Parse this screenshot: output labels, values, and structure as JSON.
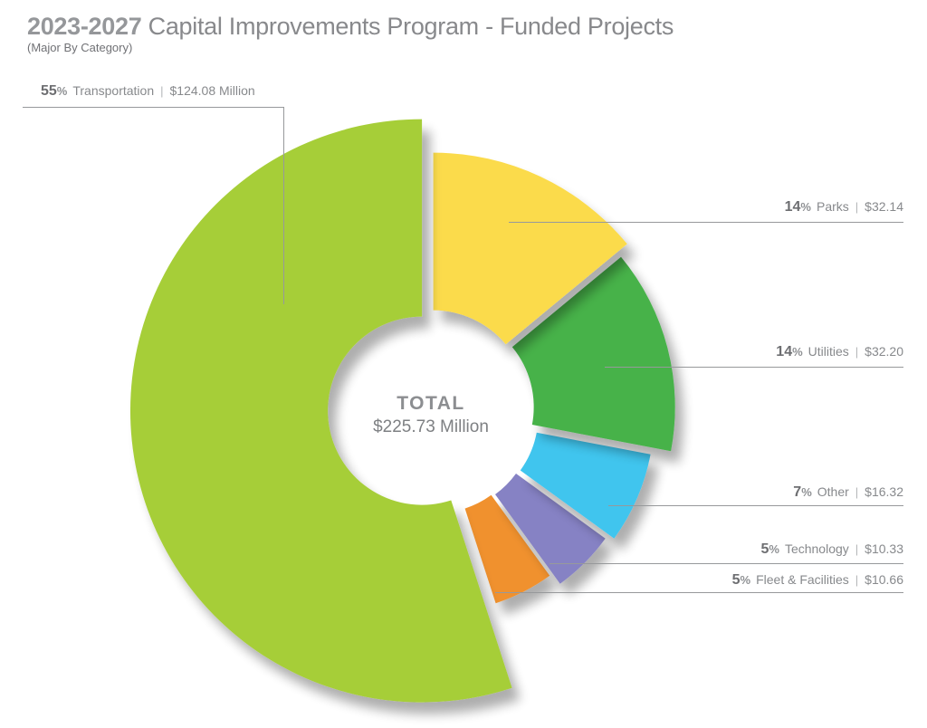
{
  "title": {
    "year_range": "2023-2027",
    "text": "Capital Improvements Program - Funded Projects",
    "subtitle": "(Major By Category)"
  },
  "labels": {
    "separator": "|"
  },
  "palette": {
    "text_gray": "#87898C",
    "percent_gray": "#6D6E71",
    "leader_line_gray": "#97999B",
    "title_gray": "#88898C",
    "background": "#FFFFFF"
  },
  "chart_data": {
    "type": "pie",
    "subtype": "donut-exploded",
    "title": "2023-2027 Capital Improvements Program - Funded Projects",
    "subtitle": "(Major By Category)",
    "start_angle_deg": 0,
    "direction": "clockwise",
    "center": {
      "label": "TOTAL",
      "value": "$225.73 Million"
    },
    "total_millions": 225.73,
    "slices": [
      {
        "label": "Parks",
        "percent": 14,
        "value_text": "$32.14",
        "value_millions": 32.14,
        "color": "#FBDB4B"
      },
      {
        "label": "Utilities",
        "percent": 14,
        "value_text": "$32.20",
        "value_millions": 32.2,
        "color": "#46B24A"
      },
      {
        "label": "Other",
        "percent": 7,
        "value_text": "$16.32",
        "value_millions": 16.32,
        "color": "#3FC5EE"
      },
      {
        "label": "Technology",
        "percent": 5,
        "value_text": "$10.33",
        "value_millions": 10.33,
        "color": "#8682C4"
      },
      {
        "label": "Fleet & Facilities",
        "percent": 5,
        "value_text": "$10.66",
        "value_millions": 10.66,
        "color": "#F0912D"
      },
      {
        "label": "Transportation",
        "percent": 55,
        "value_text": "$124.08 Million",
        "value_millions": 124.08,
        "color": "#A6CE39"
      }
    ]
  }
}
